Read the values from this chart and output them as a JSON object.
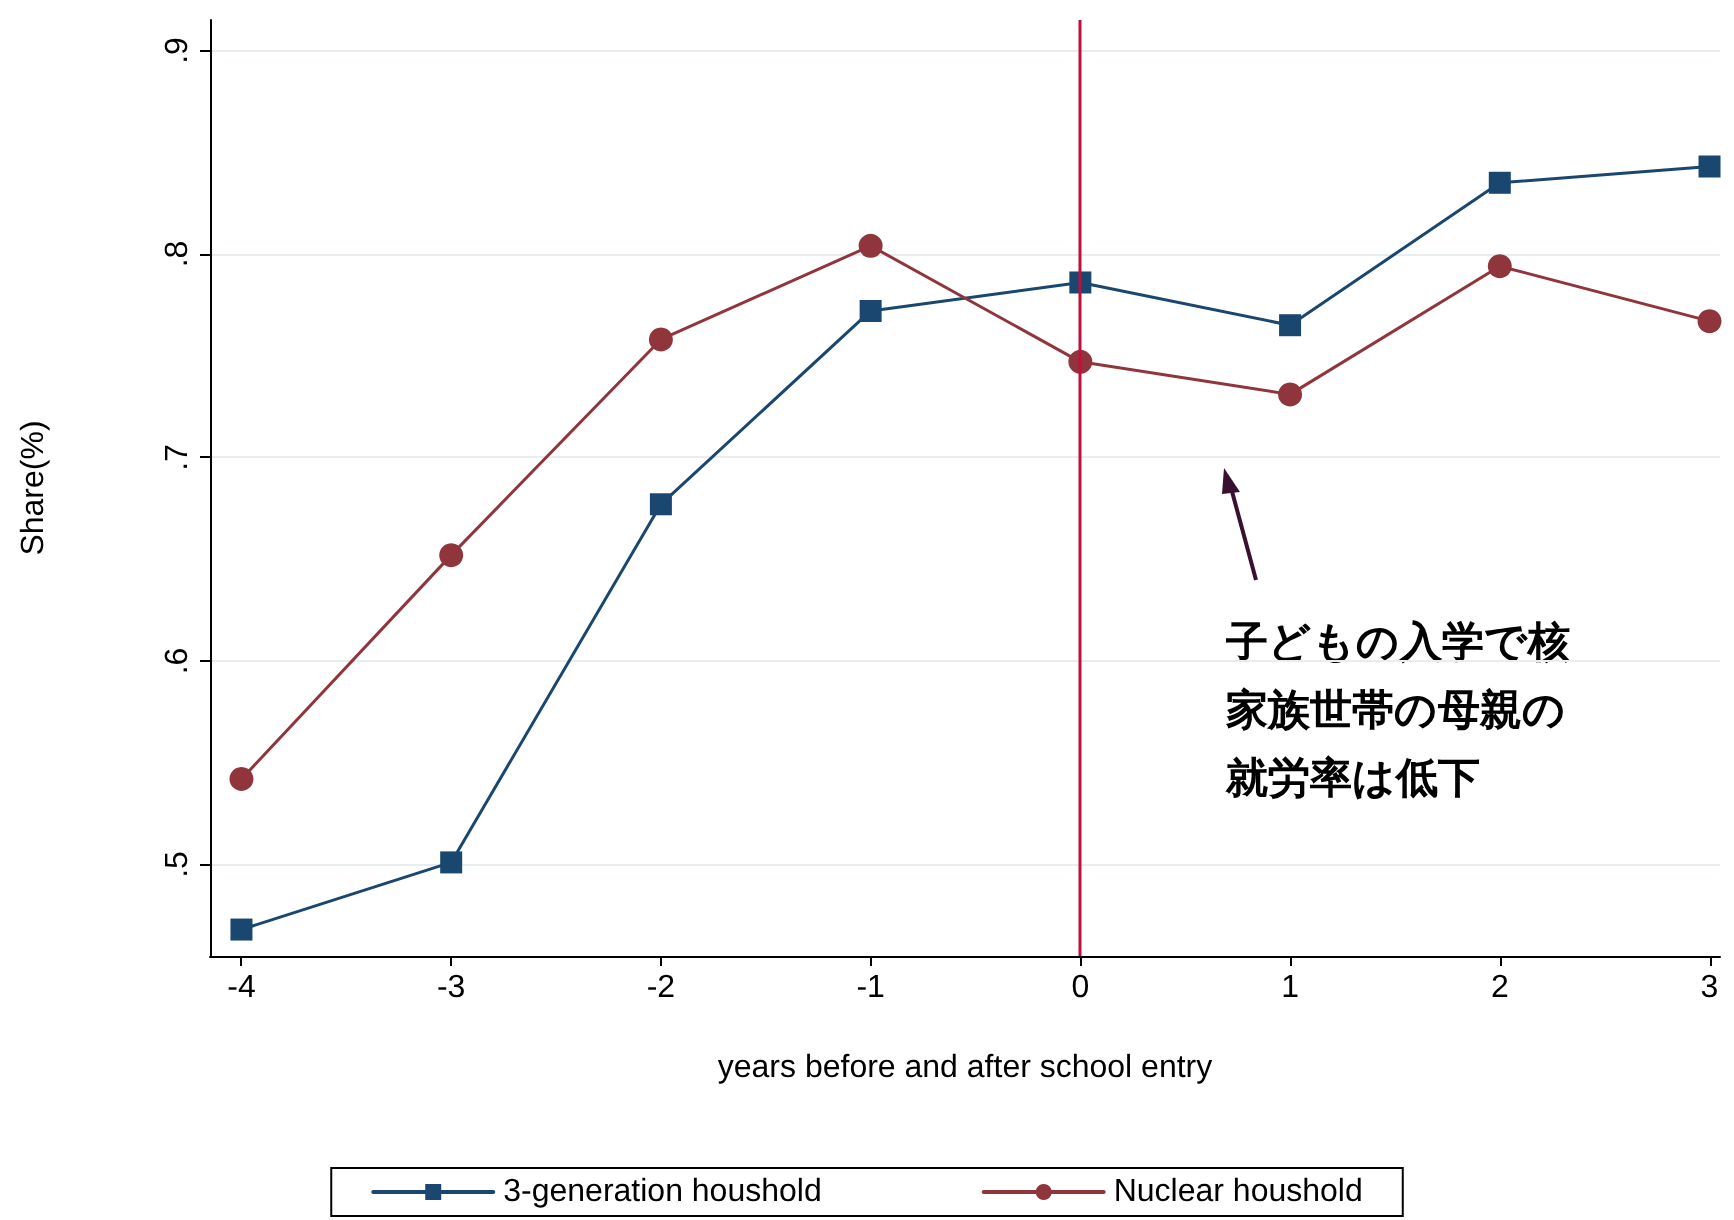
{
  "chart_data": {
    "type": "line",
    "xlabel": "years before and after school entry",
    "ylabel": "Share(%)",
    "x": [
      -4,
      -3,
      -2,
      -1,
      0,
      1,
      2,
      3
    ],
    "series": [
      {
        "name": "3-generation houshold",
        "color": "#1a476f",
        "marker": "square",
        "values": [
          0.468,
          0.501,
          0.677,
          0.772,
          0.786,
          0.765,
          0.835,
          0.843
        ]
      },
      {
        "name": "Nuclear houshold",
        "color": "#90353b",
        "marker": "circle",
        "values": [
          0.542,
          0.652,
          0.758,
          0.804,
          0.747,
          0.731,
          0.794,
          0.767
        ]
      }
    ],
    "xlim": [
      -4.15,
      3.05
    ],
    "xticks": [
      -4,
      -3,
      -2,
      -1,
      0,
      1,
      2,
      3
    ],
    "ylim": [
      0.455,
      0.915
    ],
    "yticks": [
      {
        "value": 0.5,
        "label": ".5"
      },
      {
        "value": 0.6,
        "label": ".6"
      },
      {
        "value": 0.7,
        "label": ".7"
      },
      {
        "value": 0.8,
        "label": ".8"
      },
      {
        "value": 0.9,
        "label": ".9"
      }
    ],
    "grid": "y",
    "legend": "bottom",
    "line_style": "solid",
    "ref_lines": [
      {
        "axis": "x",
        "value": 0,
        "color": "#c0103a"
      }
    ],
    "annotations": [
      "子どもの入学で核",
      "家族世帯の母親の",
      "就労率は低下"
    ]
  }
}
